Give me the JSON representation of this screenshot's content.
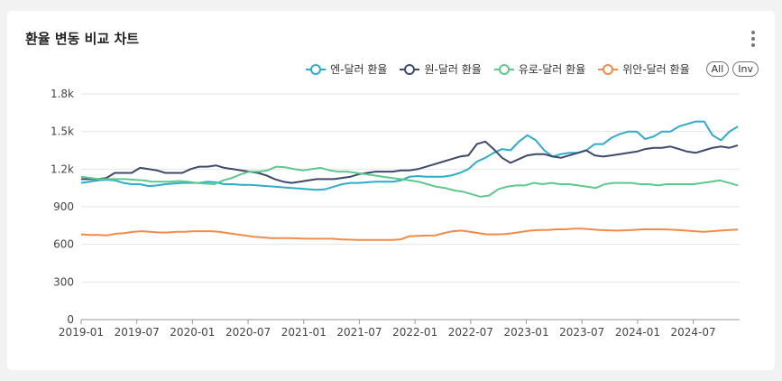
{
  "card": {
    "title": "환율 변동 비교 차트",
    "menu_icon": "kebab-menu-icon"
  },
  "legend_controls": {
    "all_label": "All",
    "inv_label": "Inv"
  },
  "chart_data": {
    "type": "line",
    "title": "환율 변동 비교 차트",
    "xlabel": "",
    "ylabel": "",
    "ylim": [
      0,
      1800
    ],
    "yticks": [
      "0",
      "300",
      "600",
      "900",
      "1.2k",
      "1.5k",
      "1.8k"
    ],
    "ytick_values": [
      0,
      300,
      600,
      900,
      1200,
      1500,
      1800
    ],
    "xticks": [
      "2019-01",
      "2019-07",
      "2020-01",
      "2020-07",
      "2021-01",
      "2021-07",
      "2022-01",
      "2022-07",
      "2023-01",
      "2023-07",
      "2024-01",
      "2024-07"
    ],
    "x_start": "2019-01",
    "x_end": "2024-12",
    "grid": "horizontal",
    "legend_position": "top-right",
    "series": [
      {
        "name": "엔-달러 환율",
        "color": "#2eacc9",
        "values": [
          1090,
          1100,
          1110,
          1115,
          1110,
          1090,
          1080,
          1080,
          1065,
          1070,
          1080,
          1085,
          1090,
          1090,
          1090,
          1100,
          1095,
          1080,
          1080,
          1075,
          1075,
          1070,
          1065,
          1060,
          1055,
          1050,
          1045,
          1040,
          1035,
          1040,
          1060,
          1080,
          1090,
          1090,
          1095,
          1100,
          1100,
          1100,
          1110,
          1140,
          1145,
          1140,
          1140,
          1140,
          1150,
          1170,
          1200,
          1260,
          1290,
          1330,
          1360,
          1350,
          1420,
          1470,
          1430,
          1350,
          1300,
          1320,
          1330,
          1330,
          1350,
          1400,
          1400,
          1450,
          1480,
          1500,
          1500,
          1440,
          1460,
          1500,
          1500,
          1540,
          1560,
          1580,
          1580,
          1470,
          1430,
          1500,
          1540
        ]
      },
      {
        "name": "원-달러 환율",
        "color": "#3d4a6b",
        "values": [
          1120,
          1120,
          1120,
          1130,
          1170,
          1170,
          1170,
          1210,
          1200,
          1190,
          1170,
          1170,
          1170,
          1200,
          1220,
          1220,
          1230,
          1210,
          1200,
          1190,
          1180,
          1170,
          1150,
          1120,
          1100,
          1090,
          1100,
          1110,
          1120,
          1120,
          1120,
          1130,
          1140,
          1160,
          1170,
          1180,
          1180,
          1180,
          1190,
          1190,
          1200,
          1220,
          1240,
          1260,
          1280,
          1300,
          1310,
          1400,
          1420,
          1360,
          1290,
          1250,
          1280,
          1310,
          1320,
          1320,
          1300,
          1290,
          1310,
          1330,
          1350,
          1310,
          1300,
          1310,
          1320,
          1330,
          1340,
          1360,
          1370,
          1370,
          1380,
          1360,
          1340,
          1330,
          1350,
          1370,
          1380,
          1370,
          1390
        ]
      },
      {
        "name": "유로-달러 환율",
        "color": "#5cc98d",
        "values": [
          1140,
          1130,
          1120,
          1120,
          1120,
          1120,
          1115,
          1110,
          1100,
          1100,
          1100,
          1105,
          1100,
          1090,
          1085,
          1080,
          1110,
          1130,
          1160,
          1180,
          1180,
          1190,
          1220,
          1215,
          1200,
          1190,
          1200,
          1210,
          1190,
          1180,
          1180,
          1170,
          1160,
          1150,
          1140,
          1130,
          1120,
          1110,
          1100,
          1080,
          1060,
          1050,
          1030,
          1020,
          1000,
          980,
          990,
          1040,
          1060,
          1070,
          1070,
          1090,
          1080,
          1090,
          1080,
          1080,
          1070,
          1060,
          1050,
          1080,
          1090,
          1090,
          1090,
          1080,
          1080,
          1070,
          1080,
          1080,
          1080,
          1080,
          1090,
          1100,
          1110,
          1090,
          1070
        ]
      },
      {
        "name": "위안-달러 환율",
        "color": "#f28a4a",
        "values": [
          680,
          675,
          675,
          672,
          685,
          690,
          700,
          705,
          700,
          695,
          695,
          700,
          700,
          705,
          705,
          705,
          700,
          690,
          680,
          670,
          660,
          655,
          650,
          650,
          650,
          648,
          645,
          645,
          645,
          645,
          640,
          638,
          636,
          636,
          635,
          635,
          635,
          640,
          665,
          668,
          670,
          672,
          690,
          705,
          710,
          700,
          690,
          680,
          680,
          682,
          690,
          700,
          710,
          715,
          715,
          720,
          720,
          725,
          725,
          720,
          715,
          712,
          710,
          712,
          716,
          720,
          720,
          720,
          718,
          715,
          710,
          705,
          700,
          705,
          710,
          715,
          718
        ]
      }
    ]
  }
}
